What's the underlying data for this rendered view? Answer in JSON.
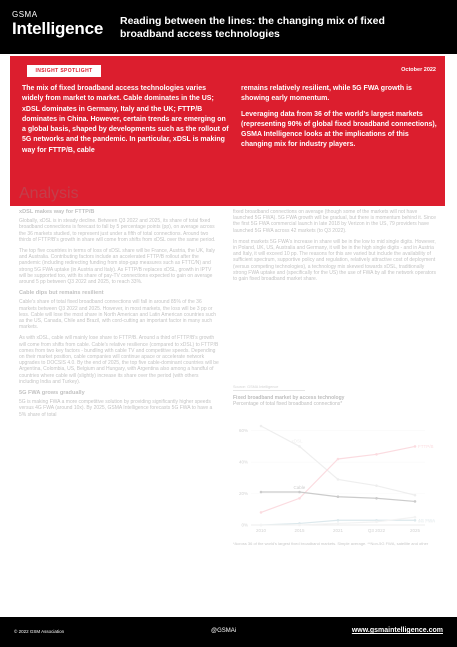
{
  "header": {
    "logo_top": "GSMA",
    "logo_main": "Intelligence",
    "title": "Reading between the lines: the changing mix of fixed broadband access technologies"
  },
  "banner": {
    "tag": "INSIGHT SPOTLIGHT",
    "date": "October 2022",
    "col1": "The mix of fixed broadband access technologies varies widely from market to market. Cable dominates in the US; xDSL dominates in Germany, Italy and the UK; FTTP/B dominates in China. However, certain trends are emerging on a global basis, shaped by developments such as the rollout of 5G networks and the pandemic. In particular, xDSL is making way for FTTP/B, cable",
    "col2_p1": "remains relatively resilient, while 5G FWA growth is showing early momentum.",
    "col2_p2": "Leveraging data from 36 of the world's largest markets (representing 90% of global fixed broadband connections), GSMA Intelligence looks at the implications of this changing mix for industry players.",
    "color": "#dc1e2e"
  },
  "analysis": {
    "heading": "Analysis",
    "left": {
      "h1": "xDSL makes way for FTTP/B",
      "p1": "Globally, xDSL is in steady decline. Between Q3 2022 and 2025, its share of total fixed broadband connections is forecast to fall by 5 percentage points (pp), on average across the 36 markets studied, to represent just under a fifth of total connections. Around two thirds of FTTP/B's growth in share will come from shifts from xDSL over the same period.",
      "p2": "The top five countries in terms of loss of xDSL share will be France, Austria, the UK, Italy and Australia. Contributing factors include an accelerated FTTP/B rollout after the pandemic (including redirecting funding from stop-gap measures such as FTTC/N) and strong 5G FWA uptake (in Austria and Italy). As FTTP/B replaces xDSL, growth in IPTV will be supported too, with its share of pay-TV connections expected to gain on average around 5 pp between Q3 2022 and 2025, to reach 33%.",
      "h2": "Cable dips but remains resilient",
      "p3": "Cable's share of total fixed broadband connections will fall in around 85% of the 36 markets between Q3 2022 and 2025. However, in most markets, the loss will be 3 pp or less. Cable will lose the most share in North American and Latin American countries such as the US, Canada, Chile and Brazil, with cord-cutting an important factor in many such markets.",
      "p4": "As with xDSL, cable will mainly lose share to FTTP/B. Around a third of FTTP/B's growth will come from shifts from cable. Cable's relative resilience (compared to xDSL) to FTTP/B comes from two key factors - bundling with cable TV and competitive speeds. Depending on their market position, cable companies will continue apace or accelerate network upgrades to DOCSIS 4.0. By the end of 2025, the top five cable-dominant countries will be Argentina, Colombia, US, Belgium and Hungary, with Argentina also among a handful of countries where cable will (slightly) increase its share over the period (with others including India and Turkey).",
      "h3": "5G FWA grows gradually",
      "p5": "5G is making FWA a more competitive solution by providing significantly higher speeds versus 4G FWA (around 10x). By 2025, GSMA Intelligence forecasts 5G FWA to have a 5% share of total"
    },
    "right": {
      "p1": "fixed broadband connections on average (though some of the markets will not have launched 5G FWA). 5G FWA growth will be gradual, but there is momentum behind it. Since the first 5G FWA commercial launch in late 2018 by Verizon in the US, 79 providers have launched 5G FWA across 42 markets (to Q3 2022).",
      "p2": "In most markets 5G FWA's increase in share will be in the low to mid single digits. However, in Poland, UK, US, Australia and Germany, it will be in the high single digits - and in Austria and Italy, it will exceed 10 pp. The reasons for this are varied but include the availability of sufficient spectrum, supportive policy and regulation, relatively attractive cost of deployment (versus competing technologies), a technology mix skewed towards xDSL, traditionally strong FWA uptake and (specifically for the US) the use of FWA by all the network operators to gain fixed broadband market share."
    }
  },
  "chart_data": {
    "type": "line",
    "source": "Source: GSMA Intelligence",
    "title": "Fixed broadband market by access technology",
    "subtitle": "Percentage of total fixed broadband connections*",
    "x": [
      "2010",
      "2015",
      "2021",
      "Q3 2022",
      "2025"
    ],
    "ylim": [
      0,
      70
    ],
    "yticks": [
      0,
      20,
      40,
      60
    ],
    "series": [
      {
        "name": "xDSL",
        "color": "#c9c9c9",
        "values": [
          63,
          50,
          29,
          25,
          19
        ]
      },
      {
        "name": "FTTP/B",
        "color": "#f28c9a",
        "values": [
          8,
          17,
          42,
          45,
          50
        ]
      },
      {
        "name": "Cable",
        "color": "#555555",
        "values": [
          21,
          21,
          18,
          17,
          15
        ]
      },
      {
        "name": "4G FWA",
        "color": "#8fb6c2",
        "values": [
          0,
          1,
          3,
          3,
          3
        ]
      },
      {
        "name": "5G FWA",
        "color": "#d9d9d9",
        "values": [
          0,
          0,
          1,
          2,
          5
        ]
      }
    ],
    "note": "*Across 36 of the world's largest fixed broadband markets. Simple average. **Non-5G FWA, satellite and other"
  },
  "footer": {
    "left": "© 2022 GSM Association",
    "mid": "@GSMAi",
    "right": "www.gsmaintelligence.com"
  }
}
